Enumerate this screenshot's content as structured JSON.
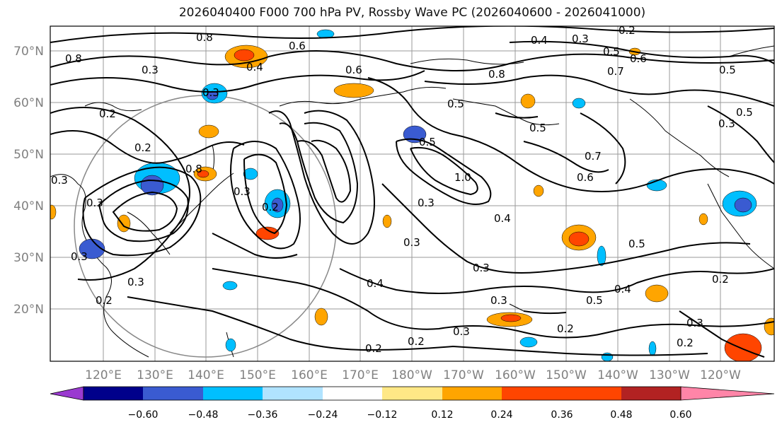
{
  "title": "2026040400 F000 700 hPa PV, Rossby Wave PC (2026040600 - 2026041000)",
  "map": {
    "lat_labels": [
      "70°N",
      "60°N",
      "50°N",
      "40°N",
      "30°N",
      "20°N"
    ],
    "lon_labels": [
      "120°E",
      "130°E",
      "140°E",
      "150°E",
      "160°E",
      "170°E",
      "180°W",
      "170°W",
      "160°W",
      "150°W",
      "140°W",
      "130°W",
      "120°W"
    ],
    "contour_labels": [
      "0.2",
      "0.3",
      "0.4",
      "0.5",
      "0.6",
      "0.7",
      "0.8",
      "1.0"
    ]
  },
  "colorbar": {
    "colors": [
      "#9a3ad0",
      "#00008b",
      "#3a5bd1",
      "#00bfff",
      "#b0e3ff",
      "#ffffff",
      "#ffe886",
      "#ffa500",
      "#ff4500",
      "#b22222",
      "#ff85a8"
    ],
    "tick_labels": [
      "−0.60",
      "−0.48",
      "−0.36",
      "−0.24",
      "−0.12",
      "0.12",
      "0.24",
      "0.36",
      "0.48",
      "0.60"
    ]
  }
}
